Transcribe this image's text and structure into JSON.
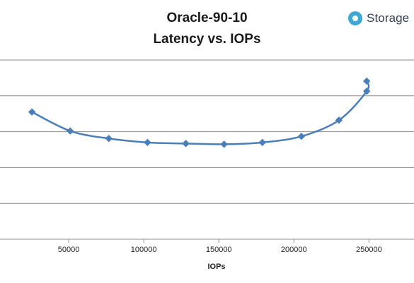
{
  "title_line1": "Oracle-90-10",
  "title_line2": "Latency vs. IOPs",
  "logo": {
    "text": "Storage",
    "icon": "storage-logo-icon",
    "color": "#3fa7d6"
  },
  "chart_data": {
    "type": "line",
    "title": "Oracle-90-10 Latency vs. IOPs",
    "xlabel": "IOPs",
    "ylabel": "",
    "xlim": [
      0,
      280000
    ],
    "ylim": [
      0,
      5
    ],
    "x_ticks": [
      50000,
      100000,
      150000,
      200000,
      250000
    ],
    "y_gridlines": [
      1,
      2,
      3,
      4,
      5
    ],
    "y_tick_labels_visible": false,
    "grid": true,
    "series": [
      {
        "color": "#4a7ebb",
        "marker": "diamond",
        "points": [
          {
            "x": 25500,
            "y": 3.55
          },
          {
            "x": 51000,
            "y": 3.02
          },
          {
            "x": 76700,
            "y": 2.81
          },
          {
            "x": 102500,
            "y": 2.7
          },
          {
            "x": 128000,
            "y": 2.67
          },
          {
            "x": 153500,
            "y": 2.65
          },
          {
            "x": 179000,
            "y": 2.7
          },
          {
            "x": 205000,
            "y": 2.87
          },
          {
            "x": 230000,
            "y": 3.32
          },
          {
            "x": 248500,
            "y": 4.13
          },
          {
            "x": 248500,
            "y": 4.41
          }
        ]
      }
    ]
  }
}
